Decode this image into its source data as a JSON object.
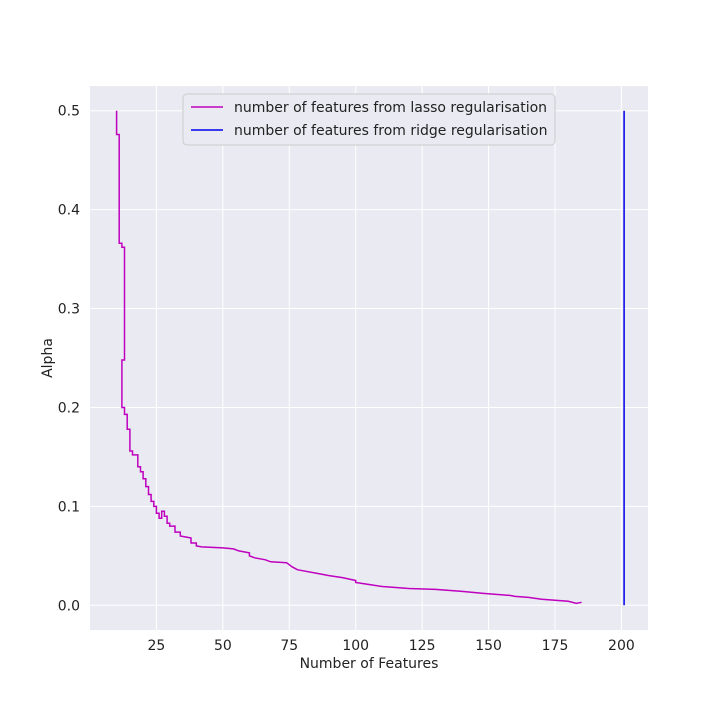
{
  "chart_data": {
    "type": "line",
    "xlabel": "Number of Features",
    "ylabel": "Alpha",
    "xlim": [
      0,
      210
    ],
    "ylim": [
      -0.025,
      0.525
    ],
    "xticks": [
      25,
      50,
      75,
      100,
      125,
      150,
      175,
      200
    ],
    "yticks": [
      0.0,
      0.1,
      0.2,
      0.3,
      0.4,
      0.5
    ],
    "ytick_labels": [
      "0.0",
      "0.1",
      "0.2",
      "0.3",
      "0.4",
      "0.5"
    ],
    "grid": true,
    "legend_position": "top-center",
    "background": "#EAEAF2",
    "series": [
      {
        "name": "number of features from lasso regularisation",
        "color": "#BF00BF",
        "x": [
          10,
          10,
          11,
          11,
          12,
          12,
          13,
          13,
          12,
          12,
          13,
          13,
          14,
          14,
          15,
          15,
          16,
          16,
          18,
          18,
          19,
          19,
          20,
          20,
          21,
          21,
          22,
          22,
          23,
          23,
          24,
          24,
          25,
          25,
          26,
          26,
          27,
          27,
          28,
          28,
          29,
          29,
          30,
          30,
          32,
          32,
          34,
          34,
          36,
          38,
          38,
          40,
          40,
          42,
          50,
          54,
          56,
          58,
          60,
          60,
          62,
          66,
          68,
          74,
          76,
          78,
          80,
          86,
          90,
          95,
          100,
          100,
          105,
          110,
          120,
          130,
          140,
          148,
          158,
          160,
          165,
          170,
          175,
          180,
          183,
          185
        ],
        "y": [
          0.5,
          0.476,
          0.476,
          0.366,
          0.366,
          0.362,
          0.362,
          0.248,
          0.248,
          0.2,
          0.2,
          0.193,
          0.193,
          0.178,
          0.178,
          0.156,
          0.156,
          0.152,
          0.152,
          0.14,
          0.14,
          0.135,
          0.135,
          0.128,
          0.128,
          0.12,
          0.12,
          0.112,
          0.112,
          0.105,
          0.105,
          0.1,
          0.1,
          0.093,
          0.093,
          0.088,
          0.088,
          0.095,
          0.095,
          0.09,
          0.09,
          0.083,
          0.083,
          0.08,
          0.08,
          0.074,
          0.074,
          0.07,
          0.069,
          0.068,
          0.063,
          0.063,
          0.06,
          0.059,
          0.058,
          0.057,
          0.055,
          0.054,
          0.053,
          0.05,
          0.048,
          0.046,
          0.044,
          0.043,
          0.039,
          0.036,
          0.035,
          0.032,
          0.03,
          0.028,
          0.025,
          0.023,
          0.021,
          0.019,
          0.017,
          0.016,
          0.014,
          0.012,
          0.01,
          0.009,
          0.008,
          0.006,
          0.005,
          0.004,
          0.002,
          0.003
        ]
      },
      {
        "name": "number of features from ridge regularisation",
        "color": "#0000EE",
        "x": [
          201,
          201
        ],
        "y": [
          0.5,
          0.0
        ]
      }
    ]
  }
}
